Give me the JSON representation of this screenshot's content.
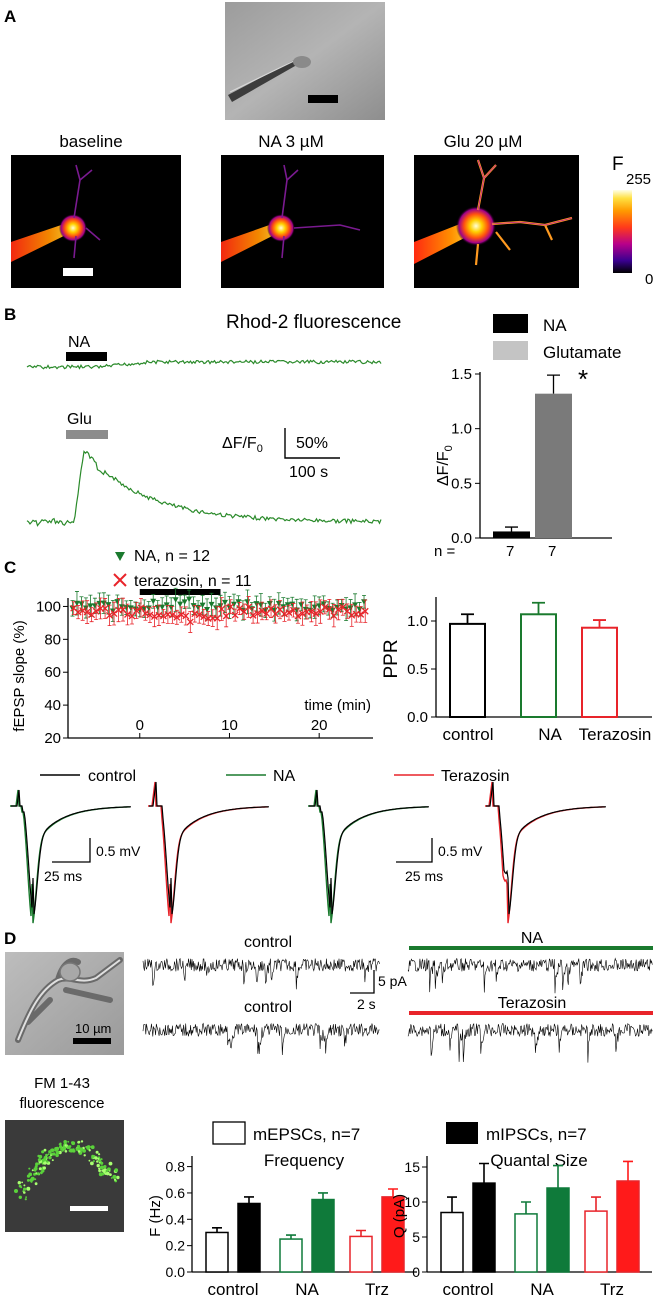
{
  "panels": {
    "a": {
      "letter": "A",
      "images": [
        {
          "label": "baseline",
          "level": 0.55
        },
        {
          "label": "NA 3 µM",
          "level": 0.6
        },
        {
          "label": "Glu 20 µM",
          "level": 1.0
        }
      ],
      "colorbar": {
        "title": "F",
        "max": "255",
        "min": "0"
      }
    },
    "b": {
      "letter": "B",
      "title": "Rhod-2 fluorescence",
      "bar_na": "NA",
      "bar_glu": "Glu",
      "scale_y_label": "ΔF/F0",
      "scale_y": "50%",
      "scale_x": "100 s"
    },
    "c": {
      "letter": "C",
      "legend_na": "NA,  n = 12",
      "legend_trz": "terazosin,  n = 11",
      "xlabel": "time (min)",
      "ylabel": "fEPSP slope (%)",
      "trace_legend": [
        "control",
        "NA",
        "Terazosin"
      ],
      "scale_v": "0.5 mV",
      "scale_t": "25 ms"
    },
    "d": {
      "letter": "D",
      "scale_bar_cell": "10 µm",
      "fm_label_1": "FM 1-43",
      "fm_label_2": "fluorescence",
      "trace_labels": [
        "control",
        "NA",
        "control",
        "Terazosin"
      ],
      "scale_i": "5 pA",
      "scale_t": "2 s",
      "legend_mepsc": "mEPSCs, n=7",
      "legend_mipsc": "mIPSCs, n=7"
    }
  },
  "colors": {
    "green": "#1a7a2e",
    "red": "#e8242a",
    "dark_green": "#0f7a3a",
    "gray": "#808080",
    "black": "#000000"
  },
  "chart_data": [
    {
      "id": "rhod2-bar",
      "type": "bar",
      "title": "",
      "ylabel": "ΔF/F0",
      "legend": [
        "NA",
        "Glutamate"
      ],
      "categories": [
        "NA",
        "Glutamate"
      ],
      "values": [
        0.06,
        1.32
      ],
      "errors": [
        0.04,
        0.17
      ],
      "n_label": "n =",
      "n": [
        "7",
        "7"
      ],
      "ylim": [
        0,
        1.5
      ],
      "yticks": [
        "0.0",
        "0.5",
        "1.0",
        "1.5"
      ],
      "annotation": "*"
    },
    {
      "id": "fepsp-time",
      "type": "scatter",
      "xlabel": "time (min)",
      "ylabel": "fEPSP slope (%)",
      "xlim": [
        -8,
        26
      ],
      "ylim": [
        20,
        110
      ],
      "xticks": [
        "0",
        "10",
        "20"
      ],
      "yticks": [
        "20",
        "40",
        "60",
        "80",
        "100"
      ],
      "drug_window": [
        0,
        9
      ],
      "series": [
        {
          "name": "NA",
          "mean": 100,
          "sem": 6
        },
        {
          "name": "terazosin",
          "mean": 97,
          "sem": 6
        }
      ]
    },
    {
      "id": "ppr-bar",
      "type": "bar",
      "ylabel": "PPR",
      "categories": [
        "control",
        "NA",
        "Terazosin"
      ],
      "values": [
        0.97,
        1.07,
        0.93
      ],
      "errors": [
        0.1,
        0.12,
        0.08
      ],
      "ylim": [
        0,
        1.25
      ],
      "yticks": [
        "0.0",
        "0.5",
        "1.0"
      ]
    },
    {
      "id": "frequency-bar",
      "type": "bar",
      "title": "Frequency",
      "ylabel": "F (Hz)",
      "categories": [
        "control",
        "NA",
        "Trz"
      ],
      "series": [
        {
          "name": "mEPSCs, n=7",
          "values": [
            0.3,
            0.25,
            0.27
          ],
          "errors": [
            0.035,
            0.03,
            0.045
          ]
        },
        {
          "name": "mIPSCs, n=7",
          "values": [
            0.52,
            0.55,
            0.57
          ],
          "errors": [
            0.05,
            0.05,
            0.06
          ]
        }
      ],
      "ylim": [
        0,
        0.85
      ],
      "yticks": [
        "0.0",
        "0.2",
        "0.4",
        "0.6",
        "0.8"
      ]
    },
    {
      "id": "quantal-bar",
      "type": "bar",
      "title": "Quantal Size",
      "ylabel": "Q (pA)",
      "categories": [
        "control",
        "NA",
        "Trz"
      ],
      "series": [
        {
          "name": "mEPSCs, n=7",
          "values": [
            8.5,
            8.3,
            8.7
          ],
          "errors": [
            2.2,
            1.7,
            2.0
          ]
        },
        {
          "name": "mIPSCs, n=7",
          "values": [
            12.7,
            12.0,
            13.0
          ],
          "errors": [
            2.8,
            3.2,
            2.8
          ]
        }
      ],
      "ylim": [
        0,
        16
      ],
      "yticks": [
        "0",
        "5",
        "10",
        "15"
      ]
    }
  ]
}
